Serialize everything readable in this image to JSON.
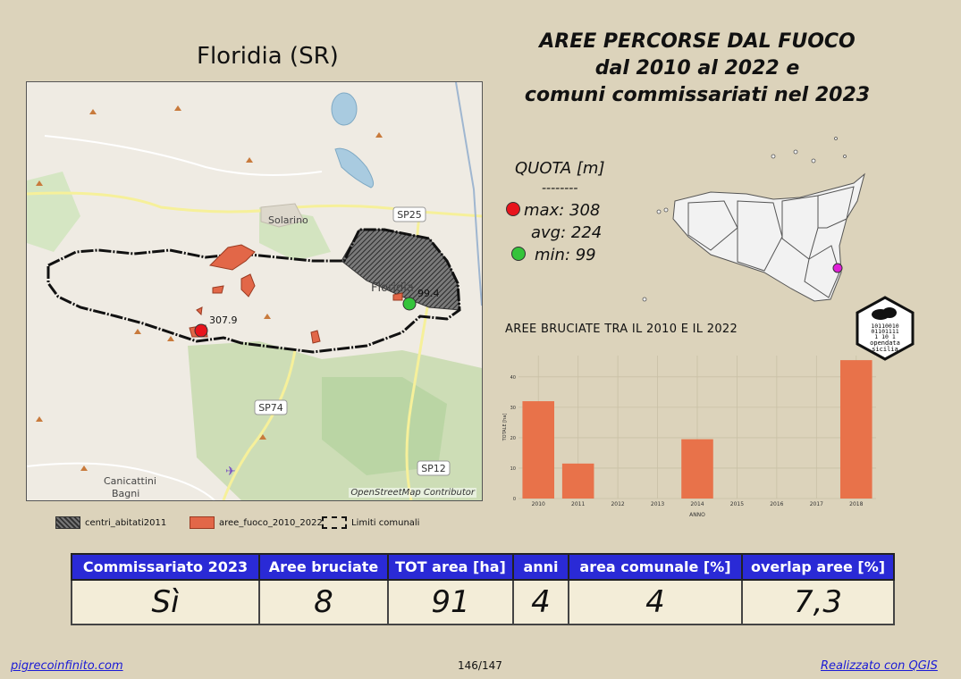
{
  "map": {
    "title": "Floridia (SR)",
    "attribution": "OpenStreetMap Contributor",
    "place_labels": [
      "Solarino",
      "Floridia",
      "Canicattini Bagni"
    ],
    "road_labels": [
      "SP25",
      "SP74",
      "SP12"
    ],
    "max_marker_label": "307.9",
    "min_marker_label": "99.4"
  },
  "legend": {
    "centri": "centri_abitati2011",
    "aree": "aree_fuoco_2010_2022",
    "limiti": "Limiti comunali"
  },
  "main_title": {
    "line1": "AREE PERCORSE DAL FUOCO",
    "line2": "dal 2010 al 2022 e",
    "line3": "comuni commissariati nel 2023"
  },
  "quota": {
    "title": "QUOTA [m]",
    "sep": "--------",
    "max": "max: 308",
    "avg": "avg: 224",
    "min": "min: 99"
  },
  "colors": {
    "max": "#e8141c",
    "min": "#34c43a",
    "bar": "#e8724a",
    "locator": "#e020d8",
    "header": "#2a2ad6"
  },
  "logo": {
    "bits1": "10110010",
    "bits2": "01101111",
    "bits3": "1   10 1",
    "text1": "opendata",
    "text2": "sicilia"
  },
  "chart_data": {
    "type": "bar",
    "title": "AREE BRUCIATE TRA IL 2010 E IL 2022",
    "xlabel": "ANNO",
    "ylabel": "TOTALE [ha]",
    "categories": [
      "2010",
      "2011",
      "2012",
      "2013",
      "2014",
      "2015",
      "2016",
      "2017",
      "2018"
    ],
    "values": [
      32,
      11.5,
      0,
      0,
      19.5,
      0,
      0,
      0,
      45.5
    ],
    "yticks": [
      "0",
      "10",
      "20",
      "30",
      "40"
    ],
    "ylim": [
      0,
      47
    ],
    "grid": true
  },
  "table": {
    "headers": [
      "Commissariato 2023",
      "Aree bruciate",
      "TOT area [ha]",
      "anni",
      "area comunale [%]",
      "overlap aree [%]"
    ],
    "values": [
      "Sì",
      "8",
      "91",
      "4",
      "4",
      "7,3"
    ]
  },
  "footer": {
    "left": "pigrecoinfinito.com",
    "page": "146/147",
    "right": "Realizzato con QGIS"
  }
}
